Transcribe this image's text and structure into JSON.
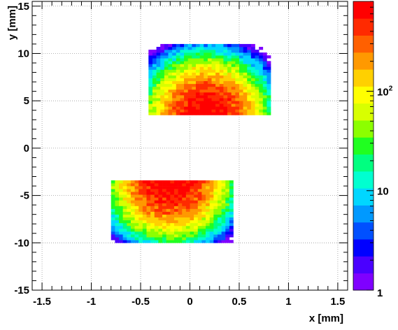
{
  "chart_data": {
    "type": "heatmap",
    "xlabel": "x [mm]",
    "ylabel": "y [mm]",
    "xlim": [
      -1.6,
      1.6
    ],
    "ylim": [
      -15,
      15.5
    ],
    "grid": true,
    "x_ticks": [
      {
        "v": -1.5,
        "t": "-1.5"
      },
      {
        "v": -1,
        "t": "-1"
      },
      {
        "v": -0.5,
        "t": "-0.5"
      },
      {
        "v": 0,
        "t": "0"
      },
      {
        "v": 0.5,
        "t": "0.5"
      },
      {
        "v": 1,
        "t": "1"
      },
      {
        "v": 1.5,
        "t": "1.5"
      }
    ],
    "y_ticks": [
      {
        "v": -15,
        "t": "-15"
      },
      {
        "v": -10,
        "t": "-10"
      },
      {
        "v": -5,
        "t": "-5"
      },
      {
        "v": 0,
        "t": "0"
      },
      {
        "v": 5,
        "t": "5"
      },
      {
        "v": 10,
        "t": "10"
      },
      {
        "v": 15,
        "t": "15"
      }
    ],
    "colorbar": {
      "scale": "log",
      "range": [
        1,
        800
      ],
      "labels": [
        {
          "v": 1,
          "t": "1",
          "sup": ""
        },
        {
          "v": 10,
          "t": "10",
          "sup": ""
        },
        {
          "v": 100,
          "t": "10",
          "sup": "2"
        }
      ],
      "palette": [
        "#7f00ff",
        "#4a00ff",
        "#0000ff",
        "#0050ff",
        "#0099ff",
        "#00d7ff",
        "#00ffd0",
        "#00ff80",
        "#20ff20",
        "#8cff00",
        "#d8ff00",
        "#ffff00",
        "#ffd000",
        "#ff9900",
        "#ff6000",
        "#ff2a00",
        "#ff0000"
      ]
    },
    "blobs": [
      {
        "name": "upper",
        "x0": 0.17,
        "y0": 3.5,
        "sx": 0.24,
        "sy": 2.4,
        "peak": 800,
        "y_from": 3.5,
        "y_to": 10.8,
        "x_from": -0.42,
        "x_to": 0.8
      },
      {
        "name": "lower",
        "x0": -0.2,
        "y0": -3.5,
        "sx": 0.24,
        "sy": 2.4,
        "peak": 800,
        "y_from": -10.0,
        "y_to": -3.5,
        "x_from": -0.8,
        "x_to": 0.42
      }
    ]
  }
}
